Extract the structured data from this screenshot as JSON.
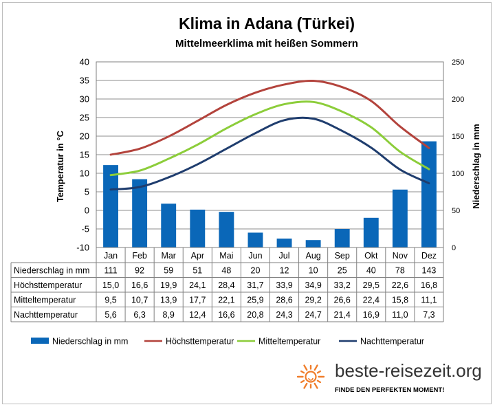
{
  "title": "Klima in Adana (Türkei)",
  "subtitle": "Mittelmeerklima mit heißen Sommern",
  "brand": {
    "name": "beste-reisezeit.org",
    "slogan": "FINDE DEN PERFEKTEN MOMENT!",
    "icon": "sun-icon",
    "icon_color": "#f07d2a"
  },
  "colors": {
    "precipitation": "#0a67b8",
    "high": "#b3433c",
    "mean": "#8ccd3a",
    "low": "#1f3d6e"
  },
  "chart_data": {
    "type": "bar+line",
    "categories": [
      "Jan",
      "Feb",
      "Mar",
      "Apr",
      "Mai",
      "Jun",
      "Jul",
      "Aug",
      "Sep",
      "Okt",
      "Nov",
      "Dez"
    ],
    "ylabel": "Temperatur in °C",
    "ylabel_right": "Niederschlag in mm",
    "ylim": [
      -10,
      40
    ],
    "yticks": [
      -10,
      -5,
      0,
      5,
      10,
      15,
      20,
      25,
      30,
      35,
      40
    ],
    "ylim_right": [
      0,
      250
    ],
    "yticks_right": [
      0,
      50,
      100,
      150,
      200,
      250
    ],
    "grid": true,
    "legend_position": "bottom",
    "series": [
      {
        "name": "Niederschlag in mm",
        "type": "bar",
        "axis": "right",
        "color": "#0a67b8",
        "values": [
          111,
          92,
          59,
          51,
          48,
          20,
          12,
          10,
          25,
          40,
          78,
          143
        ]
      },
      {
        "name": "Höchsttemperatur",
        "type": "line",
        "axis": "left",
        "color": "#b3433c",
        "values": [
          15.0,
          16.6,
          19.9,
          24.1,
          28.4,
          31.7,
          33.9,
          34.9,
          33.2,
          29.5,
          22.6,
          16.8
        ]
      },
      {
        "name": "Mitteltemperatur",
        "type": "line",
        "axis": "left",
        "color": "#8ccd3a",
        "values": [
          9.5,
          10.7,
          13.9,
          17.7,
          22.1,
          25.9,
          28.6,
          29.2,
          26.6,
          22.4,
          15.8,
          11.1
        ]
      },
      {
        "name": "Nachttemperatur",
        "type": "line",
        "axis": "left",
        "color": "#1f3d6e",
        "values": [
          5.6,
          6.3,
          8.9,
          12.4,
          16.6,
          20.8,
          24.3,
          24.7,
          21.4,
          16.9,
          11.0,
          7.3
        ]
      }
    ],
    "table": {
      "rows": [
        {
          "label": "Niederschlag in mm",
          "cells": [
            "111",
            "92",
            "59",
            "51",
            "48",
            "20",
            "12",
            "10",
            "25",
            "40",
            "78",
            "143"
          ]
        },
        {
          "label": "Höchsttemperatur",
          "cells": [
            "15,0",
            "16,6",
            "19,9",
            "24,1",
            "28,4",
            "31,7",
            "33,9",
            "34,9",
            "33,2",
            "29,5",
            "22,6",
            "16,8"
          ]
        },
        {
          "label": "Mitteltemperatur",
          "cells": [
            "9,5",
            "10,7",
            "13,9",
            "17,7",
            "22,1",
            "25,9",
            "28,6",
            "29,2",
            "26,6",
            "22,4",
            "15,8",
            "11,1"
          ]
        },
        {
          "label": "Nachttemperatur",
          "cells": [
            "5,6",
            "6,3",
            "8,9",
            "12,4",
            "16,6",
            "20,8",
            "24,3",
            "24,7",
            "21,4",
            "16,9",
            "11,0",
            "7,3"
          ]
        }
      ]
    }
  }
}
